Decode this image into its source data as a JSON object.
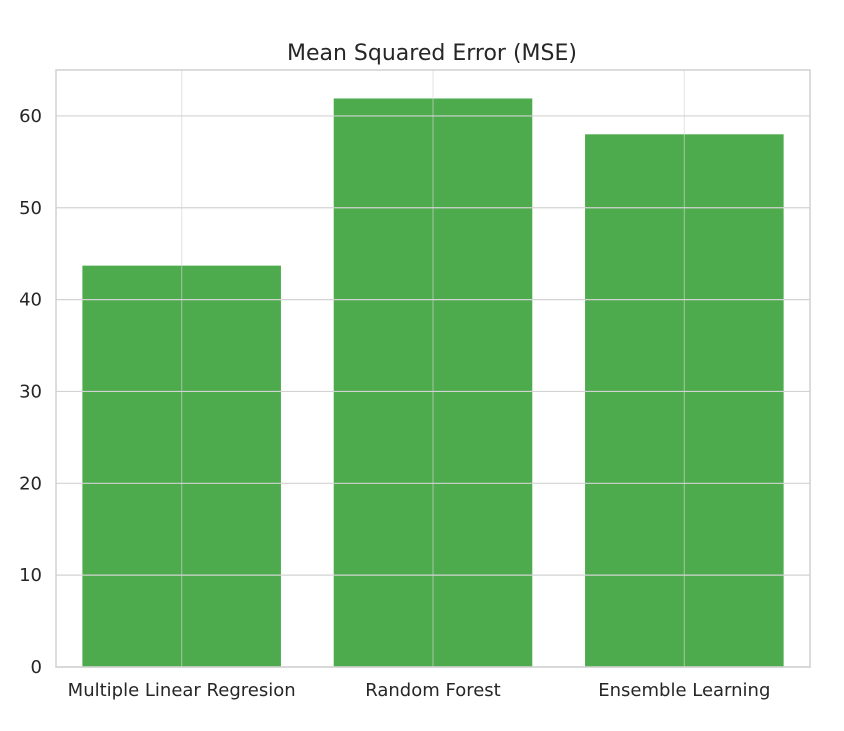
{
  "chart_data": {
    "type": "bar",
    "title": "Mean Squared Error (MSE)",
    "xlabel": "",
    "ylabel": "",
    "categories": [
      "Multiple Linear Regresion",
      "Random Forest",
      "Ensemble Learning"
    ],
    "values": [
      43.7,
      61.9,
      58.0
    ],
    "ylim": [
      0,
      65
    ],
    "yticks": [
      0,
      10,
      20,
      30,
      40,
      50,
      60
    ],
    "grid": true,
    "colors": {
      "bar": "#2e9b2e",
      "bar_opacity": 0.85,
      "grid": "#d3d3d3",
      "text": "#262626"
    }
  }
}
